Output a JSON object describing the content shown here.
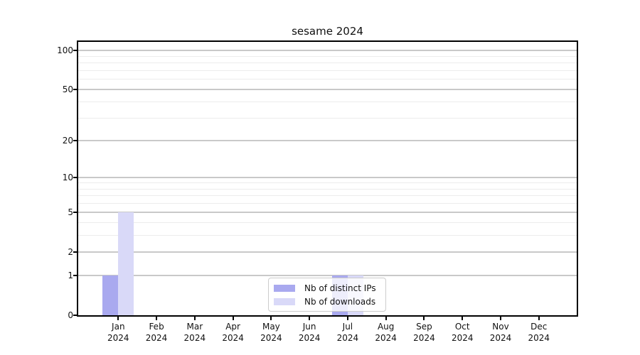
{
  "chart_data": {
    "type": "bar",
    "title": "sesame 2024",
    "categories": [
      "Jan",
      "Feb",
      "Mar",
      "Apr",
      "May",
      "Jun",
      "Jul",
      "Aug",
      "Sep",
      "Oct",
      "Nov",
      "Dec"
    ],
    "tick_year": "2024",
    "series": [
      {
        "name": "Nb of distinct IPs",
        "color": "#a9a9ef",
        "values": [
          1,
          0,
          0,
          0,
          0,
          0,
          1,
          0,
          0,
          0,
          0,
          0
        ]
      },
      {
        "name": "Nb of downloads",
        "color": "#d9d9f8",
        "values": [
          5,
          0,
          0,
          0,
          0,
          0,
          1,
          0,
          0,
          0,
          0,
          0
        ]
      }
    ],
    "y_axis": {
      "scale": "log(1+y)",
      "major_ticks": [
        0,
        1,
        2,
        5,
        10,
        20,
        50,
        100
      ],
      "minor_ticks": [
        3,
        4,
        6,
        7,
        8,
        9,
        30,
        40,
        60,
        70,
        80,
        90
      ],
      "ylim": [
        0,
        116
      ]
    },
    "legend": {
      "position": "lower center"
    },
    "grid": true,
    "colors": {
      "major_grid": "#c9c9c9",
      "minor_grid": "#ececec",
      "spine": "#000000",
      "text": "#111111",
      "background": "#ffffff"
    }
  }
}
